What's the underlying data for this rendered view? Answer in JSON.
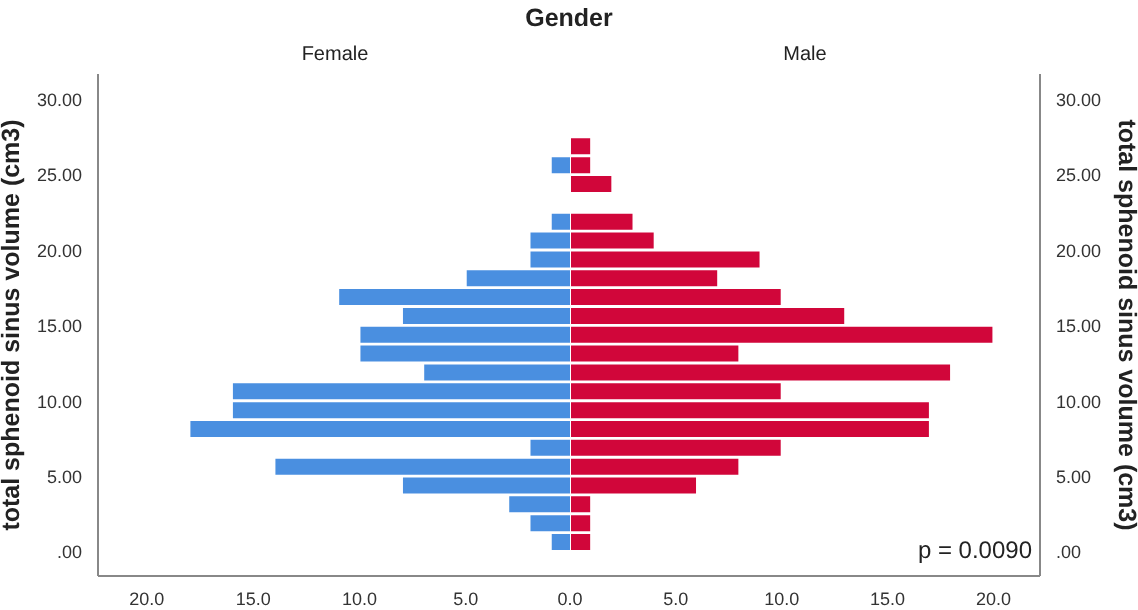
{
  "chart_data": [
    {
      "type": "histogram",
      "orientation": "horizontal",
      "title": "Gender",
      "subtitle": "Female",
      "ylabel": "total sphenoid sinus volume (cm3)",
      "color": "#4a8fe0",
      "bins": [
        0,
        1.25,
        2.5,
        3.75,
        5,
        6.25,
        7.5,
        8.75,
        10,
        11.25,
        12.5,
        13.75,
        15,
        16.25,
        17.5,
        18.75,
        20,
        21.25,
        22.5,
        23.75,
        25,
        26.25,
        27.5
      ],
      "values": [
        1,
        2,
        3,
        8,
        14,
        2,
        18,
        16,
        16,
        7,
        10,
        10,
        8,
        11,
        5,
        2,
        2,
        1,
        0,
        0,
        1,
        0
      ],
      "xlim": [
        22.3,
        0
      ],
      "xticks": [
        {
          "value": 20,
          "label": "20.0"
        },
        {
          "value": 15,
          "label": "15.0"
        },
        {
          "value": 10,
          "label": "10.0"
        },
        {
          "value": 5,
          "label": "5.0"
        }
      ],
      "ylim": [
        -1.6,
        31.7
      ],
      "yticks": [
        {
          "value": 0,
          "label": ".00"
        },
        {
          "value": 5,
          "label": "5.00"
        },
        {
          "value": 10,
          "label": "10.00"
        },
        {
          "value": 15,
          "label": "15.00"
        },
        {
          "value": 20,
          "label": "20.00"
        },
        {
          "value": 25,
          "label": "25.00"
        },
        {
          "value": 30,
          "label": "30.00"
        }
      ]
    },
    {
      "type": "histogram",
      "orientation": "horizontal",
      "subtitle": "Male",
      "ylabel": "total sphenoid sinus volume (cm3)",
      "color": "#d1063a",
      "annotations": [
        "p = 0.0090"
      ],
      "bins": [
        0,
        1.25,
        2.5,
        3.75,
        5,
        6.25,
        7.5,
        8.75,
        10,
        11.25,
        12.5,
        13.75,
        15,
        16.25,
        17.5,
        18.75,
        20,
        21.25,
        22.5,
        23.75,
        25,
        26.25,
        27.5
      ],
      "values": [
        1,
        1,
        1,
        6,
        8,
        10,
        17,
        17,
        10,
        18,
        8,
        20,
        13,
        10,
        7,
        9,
        4,
        3,
        0,
        2,
        1,
        1
      ],
      "xlim": [
        0,
        22.2
      ],
      "xticks": [
        {
          "value": 0,
          "label": "0.0"
        },
        {
          "value": 5,
          "label": "5.0"
        },
        {
          "value": 10,
          "label": "10.0"
        },
        {
          "value": 15,
          "label": "15.0"
        },
        {
          "value": 20,
          "label": "20.0"
        }
      ],
      "ylim": [
        -1.6,
        31.7
      ],
      "yticks": [
        {
          "value": 0,
          "label": ".00"
        },
        {
          "value": 5,
          "label": "5.00"
        },
        {
          "value": 10,
          "label": "10.00"
        },
        {
          "value": 15,
          "label": "15.00"
        },
        {
          "value": 20,
          "label": "20.00"
        },
        {
          "value": 25,
          "label": "25.00"
        },
        {
          "value": 30,
          "label": "30.00"
        }
      ]
    }
  ]
}
